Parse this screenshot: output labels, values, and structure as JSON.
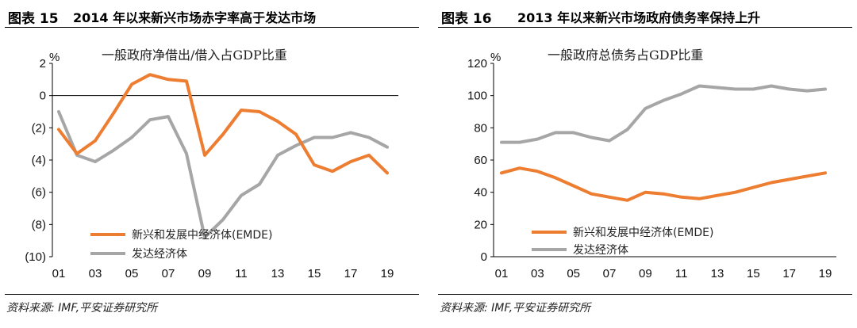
{
  "page": {
    "source_text": "资料来源: IMF,平安证券研究所",
    "colors": {
      "emde": "#ED7D31",
      "advanced": "#A6A6A6",
      "negative_tick": "#E0241C",
      "text": "#111111"
    }
  },
  "chart_data": [
    {
      "figure_number": "图表 15",
      "figure_title": "2014 年以来新兴市场赤字率高于发达市场",
      "type": "line",
      "title": "一般政府净借出/借入占GDP比重",
      "ylabel": "%",
      "ylim": [
        -10,
        2
      ],
      "yticks": [
        2,
        0,
        -2,
        -4,
        -6,
        -8,
        -10
      ],
      "ytick_labels": [
        "2",
        "0",
        "(2)",
        "(4)",
        "(6)",
        "(8)",
        "(10)"
      ],
      "x": [
        1,
        2,
        3,
        4,
        5,
        6,
        7,
        8,
        9,
        10,
        11,
        12,
        13,
        14,
        15,
        16,
        17,
        18,
        19
      ],
      "xticks": [
        1,
        3,
        5,
        7,
        9,
        11,
        13,
        15,
        17,
        19
      ],
      "xtick_labels": [
        "01",
        "03",
        "05",
        "07",
        "09",
        "11",
        "13",
        "15",
        "17",
        "19"
      ],
      "series": [
        {
          "name": "新兴和发展中经济体(EMDE)",
          "color": "#ED7D31",
          "values": [
            -2.1,
            -3.6,
            -2.8,
            -1.1,
            0.7,
            1.3,
            1.0,
            0.9,
            -3.7,
            -2.4,
            -0.9,
            -1.0,
            -1.6,
            -2.4,
            -4.3,
            -4.7,
            -4.1,
            -3.7,
            -4.8
          ]
        },
        {
          "name": "发达经济体",
          "color": "#A6A6A6",
          "values": [
            -1.0,
            -3.7,
            -4.1,
            -3.4,
            -2.6,
            -1.5,
            -1.3,
            -3.6,
            -8.8,
            -7.7,
            -6.2,
            -5.5,
            -3.7,
            -3.1,
            -2.6,
            -2.6,
            -2.3,
            -2.6,
            -3.2
          ]
        }
      ],
      "legend": "bottom-center"
    },
    {
      "figure_number": "图表 16",
      "figure_title": "2013 年以来新兴市场政府债务率保持上升",
      "type": "line",
      "title": "一般政府总债务占GDP比重",
      "ylabel": "%",
      "ylim": [
        0,
        120
      ],
      "yticks": [
        120,
        100,
        80,
        60,
        40,
        20,
        0
      ],
      "ytick_labels": [
        "120",
        "100",
        "80",
        "60",
        "40",
        "20",
        "0"
      ],
      "x": [
        1,
        2,
        3,
        4,
        5,
        6,
        7,
        8,
        9,
        10,
        11,
        12,
        13,
        14,
        15,
        16,
        17,
        18,
        19
      ],
      "xticks": [
        1,
        3,
        5,
        7,
        9,
        11,
        13,
        15,
        17,
        19
      ],
      "xtick_labels": [
        "01",
        "03",
        "05",
        "07",
        "09",
        "11",
        "13",
        "15",
        "17",
        "19"
      ],
      "series": [
        {
          "name": "新兴和发展中经济体(EMDE)",
          "color": "#ED7D31",
          "values": [
            52,
            55,
            53,
            49,
            44,
            39,
            37,
            35,
            40,
            39,
            37,
            36,
            38,
            40,
            43,
            46,
            48,
            50,
            52
          ]
        },
        {
          "name": "发达经济体",
          "color": "#A6A6A6",
          "values": [
            71,
            71,
            73,
            77,
            77,
            74,
            72,
            79,
            92,
            97,
            101,
            106,
            105,
            104,
            104,
            106,
            104,
            103,
            104
          ]
        }
      ],
      "legend": "bottom-center"
    }
  ]
}
